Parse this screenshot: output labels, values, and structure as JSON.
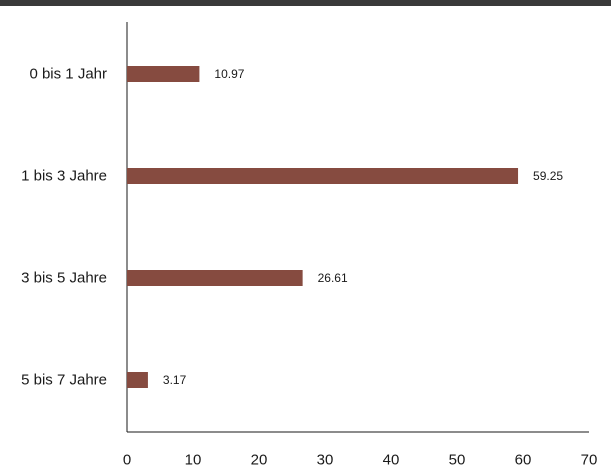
{
  "chart_data": {
    "type": "bar",
    "orientation": "horizontal",
    "categories": [
      "0 bis 1 Jahr",
      "1 bis 3 Jahre",
      "3 bis 5 Jahre",
      "5 bis 7 Jahre"
    ],
    "values": [
      10.97,
      59.25,
      26.61,
      3.17
    ],
    "value_labels": [
      "10.97",
      "59.25",
      "26.61",
      "3.17"
    ],
    "xlim": [
      0,
      70
    ],
    "x_ticks": [
      0,
      10,
      20,
      30,
      40,
      50,
      60,
      70
    ],
    "grid": false,
    "legend": "none",
    "bar_color": "#864b40",
    "title": "",
    "xlabel": "",
    "ylabel": ""
  }
}
